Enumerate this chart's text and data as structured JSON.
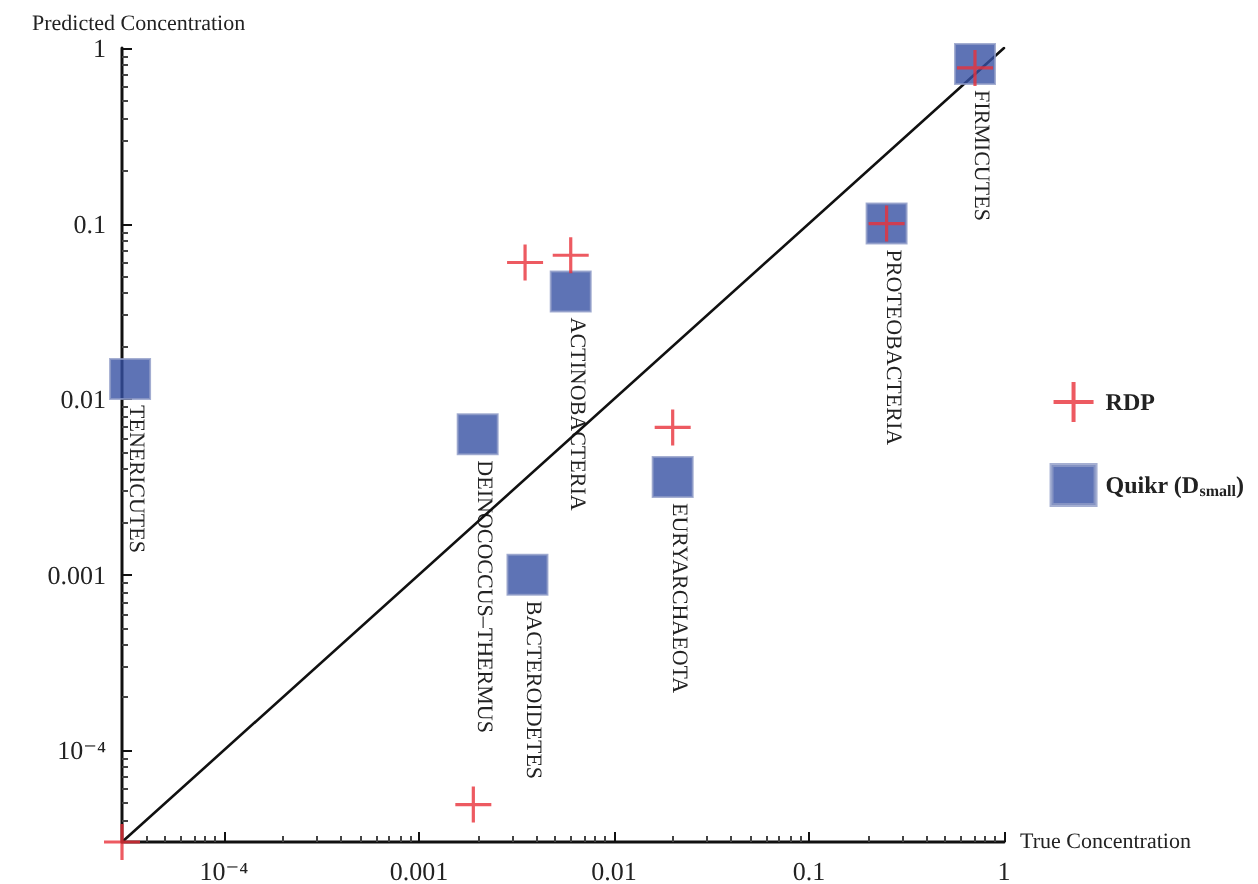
{
  "chart_data": {
    "type": "scatter",
    "xlabel": "True Concentration",
    "ylabel": "Predicted Concentration",
    "log": "xy",
    "grid": false,
    "legend": "right",
    "xlim": [
      3e-05,
      1
    ],
    "ylim": [
      3e-05,
      1
    ],
    "xticks": [
      {
        "value": 0.0001,
        "label": "10⁻⁴"
      },
      0.001,
      0.01,
      0.1,
      1
    ],
    "yticks": [
      {
        "value": 0.0001,
        "label": "10⁻⁴"
      },
      0.001,
      0.01,
      0.1,
      1
    ],
    "series": [
      {
        "type": "line",
        "color": "#111111",
        "marker": "none",
        "line_style": "solid",
        "x": [
          3e-05,
          1
        ],
        "values": [
          3e-05,
          1
        ]
      },
      {
        "name": "RDP",
        "color": "#e8313a",
        "marker": "cross",
        "x": [
          3e-05,
          0.0019,
          0.0035,
          0.006,
          0.02,
          0.25,
          0.71
        ],
        "values": [
          3e-05,
          4.9e-05,
          0.06,
          0.066,
          0.0069,
          0.1,
          0.77
        ]
      },
      {
        "name": "Quikr (D$_{small}$)",
        "color": "#3650a3",
        "marker": "square",
        "x": [
          3.3e-05,
          0.002,
          0.0036,
          0.006,
          0.02,
          0.25,
          0.71
        ],
        "values": [
          0.013,
          0.0063,
          0.001,
          0.041,
          0.0036,
          0.1,
          0.81
        ]
      }
    ],
    "annotations": [
      {
        "text": "TENERICUTES",
        "x": 3.3e-05,
        "y": 0.013
      },
      {
        "text": "DEINOCOCCUS–THERMUS",
        "x": 0.002,
        "y": 0.0063
      },
      {
        "text": "BACTEROIDETES",
        "x": 0.0036,
        "y": 0.001
      },
      {
        "text": "ACTINOBACTERIA",
        "x": 0.006,
        "y": 0.041
      },
      {
        "text": "EURYARCHAEOTA",
        "x": 0.02,
        "y": 0.0036
      },
      {
        "text": "PROTEOBACTERIA",
        "x": 0.25,
        "y": 0.1
      },
      {
        "text": "FIRMICUTES",
        "x": 0.71,
        "y": 0.81
      }
    ]
  }
}
